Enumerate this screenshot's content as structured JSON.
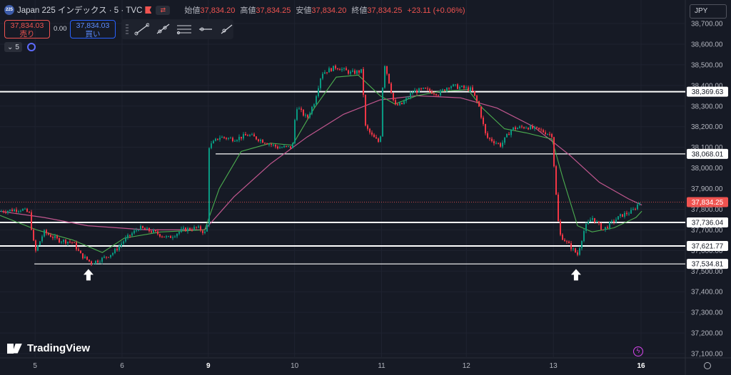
{
  "header": {
    "symbol_logo_text": "225",
    "symbol_title": "Japan 225 インデックス · 5 · TVC",
    "ohlc": [
      {
        "label": "始値",
        "value": "37,834.20"
      },
      {
        "label": "高値",
        "value": "37,834.25"
      },
      {
        "label": "安値",
        "value": "37,834.20"
      },
      {
        "label": "終値",
        "value": "37,834.25"
      }
    ],
    "change": "+23.11 (+0.06%)",
    "sell": {
      "price": "37,834.03",
      "label": "売り"
    },
    "spread": "0.00",
    "buy": {
      "price": "37,834.03",
      "label": "買い"
    },
    "interval": "5",
    "currency": "JPY",
    "brand": "TradingView"
  },
  "chart_data": {
    "type": "candlestick",
    "ylim": [
      37060,
      38760
    ],
    "y_ticks": [
      38700,
      38600,
      38500,
      38400,
      38300,
      38200,
      38100,
      38000,
      37900,
      37800,
      37700,
      37600,
      37500,
      37400,
      37300,
      37200,
      37100
    ],
    "y_tick_labels": [
      "38,700.00",
      "38,600.00",
      "38,500.00",
      "38,400.00",
      "38,300.00",
      "38,200.00",
      "38,100.00",
      "38,000.00",
      "37,900.00",
      "37,800.00",
      "37,700.00",
      "37,600.00",
      "37,500.00",
      "37,400.00",
      "37,300.00",
      "37,200.00",
      "37,100.00"
    ],
    "x_labels": [
      {
        "label": "5",
        "frac": 0.048
      },
      {
        "label": "6",
        "frac": 0.167
      },
      {
        "label": "9",
        "frac": 0.285,
        "bold": true
      },
      {
        "label": "10",
        "frac": 0.403
      },
      {
        "label": "11",
        "frac": 0.522
      },
      {
        "label": "12",
        "frac": 0.638
      },
      {
        "label": "13",
        "frac": 0.757
      },
      {
        "label": "16",
        "frac": 0.877,
        "bold": true
      }
    ],
    "last_price": {
      "value": 37834.25,
      "label": "37,834.25",
      "color": "#ef5350"
    },
    "horizontal_levels": [
      {
        "value": 38369.63,
        "label": "38,369.63",
        "from_frac": 0.0,
        "thick": true
      },
      {
        "value": 38068.01,
        "label": "38,068.01",
        "from_frac": 0.295,
        "thick": false
      },
      {
        "value": 37736.04,
        "label": "37,736.04",
        "from_frac": 0.0,
        "thick": true
      },
      {
        "value": 37621.77,
        "label": "37,621.77",
        "from_frac": 0.0,
        "thick": true
      },
      {
        "value": 37534.81,
        "label": "37,534.81",
        "from_frac": 0.047,
        "thick": false
      }
    ],
    "arrows": [
      {
        "x_frac": 0.121,
        "y": 37510
      },
      {
        "x_frac": 0.788,
        "y": 37510
      }
    ],
    "price_path": [
      [
        0.0,
        37790
      ],
      [
        0.03,
        37800
      ],
      [
        0.04,
        37780
      ],
      [
        0.048,
        37590
      ],
      [
        0.06,
        37690
      ],
      [
        0.08,
        37650
      ],
      [
        0.1,
        37640
      ],
      [
        0.11,
        37580
      ],
      [
        0.125,
        37540
      ],
      [
        0.14,
        37560
      ],
      [
        0.155,
        37590
      ],
      [
        0.17,
        37650
      ],
      [
        0.19,
        37710
      ],
      [
        0.21,
        37690
      ],
      [
        0.23,
        37660
      ],
      [
        0.25,
        37700
      ],
      [
        0.27,
        37710
      ],
      [
        0.283,
        37680
      ],
      [
        0.285,
        38100
      ],
      [
        0.3,
        38150
      ],
      [
        0.32,
        38140
      ],
      [
        0.34,
        38160
      ],
      [
        0.36,
        38130
      ],
      [
        0.38,
        38100
      ],
      [
        0.4,
        38100
      ],
      [
        0.405,
        38300
      ],
      [
        0.42,
        38240
      ],
      [
        0.43,
        38320
      ],
      [
        0.44,
        38460
      ],
      [
        0.46,
        38490
      ],
      [
        0.48,
        38460
      ],
      [
        0.495,
        38470
      ],
      [
        0.5,
        38200
      ],
      [
        0.51,
        38150
      ],
      [
        0.52,
        38120
      ],
      [
        0.525,
        38520
      ],
      [
        0.53,
        38450
      ],
      [
        0.54,
        38300
      ],
      [
        0.55,
        38310
      ],
      [
        0.565,
        38370
      ],
      [
        0.58,
        38380
      ],
      [
        0.6,
        38360
      ],
      [
        0.615,
        38400
      ],
      [
        0.63,
        38390
      ],
      [
        0.645,
        38380
      ],
      [
        0.655,
        38300
      ],
      [
        0.665,
        38150
      ],
      [
        0.685,
        38110
      ],
      [
        0.7,
        38190
      ],
      [
        0.72,
        38200
      ],
      [
        0.74,
        38180
      ],
      [
        0.755,
        38160
      ],
      [
        0.76,
        37900
      ],
      [
        0.765,
        37680
      ],
      [
        0.78,
        37620
      ],
      [
        0.79,
        37580
      ],
      [
        0.8,
        37710
      ],
      [
        0.81,
        37760
      ],
      [
        0.825,
        37700
      ],
      [
        0.835,
        37730
      ],
      [
        0.85,
        37770
      ],
      [
        0.865,
        37790
      ],
      [
        0.875,
        37834
      ]
    ],
    "ema_fast": [
      [
        0.0,
        37770
      ],
      [
        0.05,
        37700
      ],
      [
        0.1,
        37650
      ],
      [
        0.14,
        37590
      ],
      [
        0.17,
        37660
      ],
      [
        0.22,
        37690
      ],
      [
        0.28,
        37700
      ],
      [
        0.3,
        37900
      ],
      [
        0.33,
        38080
      ],
      [
        0.37,
        38120
      ],
      [
        0.4,
        38110
      ],
      [
        0.43,
        38290
      ],
      [
        0.46,
        38440
      ],
      [
        0.49,
        38450
      ],
      [
        0.52,
        38350
      ],
      [
        0.54,
        38310
      ],
      [
        0.57,
        38350
      ],
      [
        0.6,
        38370
      ],
      [
        0.64,
        38380
      ],
      [
        0.66,
        38290
      ],
      [
        0.69,
        38190
      ],
      [
        0.72,
        38170
      ],
      [
        0.755,
        38140
      ],
      [
        0.77,
        37950
      ],
      [
        0.79,
        37720
      ],
      [
        0.81,
        37690
      ],
      [
        0.84,
        37710
      ],
      [
        0.87,
        37760
      ],
      [
        0.878,
        37790
      ]
    ],
    "ema_slow": [
      [
        0.0,
        37790
      ],
      [
        0.06,
        37760
      ],
      [
        0.12,
        37720
      ],
      [
        0.2,
        37700
      ],
      [
        0.28,
        37700
      ],
      [
        0.32,
        37860
      ],
      [
        0.37,
        38020
      ],
      [
        0.42,
        38150
      ],
      [
        0.47,
        38260
      ],
      [
        0.52,
        38330
      ],
      [
        0.57,
        38350
      ],
      [
        0.63,
        38340
      ],
      [
        0.68,
        38290
      ],
      [
        0.73,
        38200
      ],
      [
        0.78,
        38060
      ],
      [
        0.82,
        37930
      ],
      [
        0.86,
        37850
      ],
      [
        0.878,
        37820
      ]
    ]
  }
}
